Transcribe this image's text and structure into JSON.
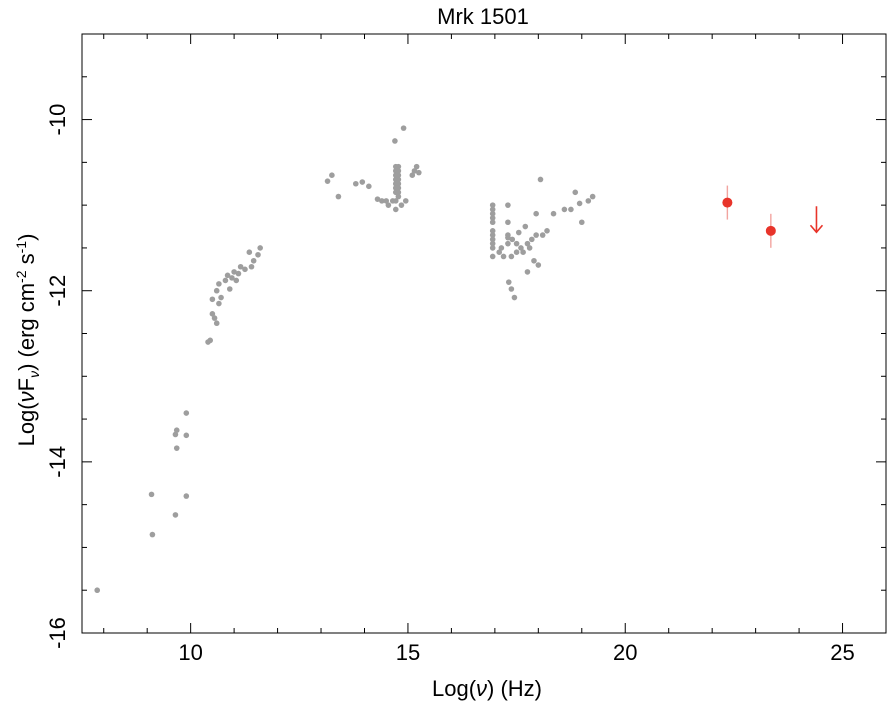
{
  "chart_data": {
    "type": "scatter",
    "title": "Mrk 1501",
    "xlabel_parts": [
      "Log(",
      "ν",
      ") (Hz)"
    ],
    "ylabel_parts": [
      "Log(",
      "ν",
      "F",
      "ν",
      ") (erg cm",
      "-2",
      " s",
      "-1",
      ")"
    ],
    "xlim": [
      7.5,
      26
    ],
    "ylim": [
      -16,
      -9
    ],
    "xticks": [
      10,
      15,
      20,
      25
    ],
    "yticks": [
      -16,
      -14,
      -12,
      -10
    ],
    "xtick_labels": [
      "10",
      "15",
      "20",
      "25"
    ],
    "ytick_labels": [
      "-16",
      "-14",
      "-12",
      "-10"
    ],
    "grid": false,
    "colors": {
      "archival": "#9e9e9e",
      "fermi": "#e8342a",
      "axes": "#000000"
    },
    "series": [
      {
        "role": "archival",
        "points": [
          [
            7.85,
            -15.5
          ],
          [
            9.1,
            -14.38
          ],
          [
            9.12,
            -14.85
          ],
          [
            9.65,
            -14.62
          ],
          [
            9.65,
            -13.68
          ],
          [
            9.68,
            -13.63
          ],
          [
            9.68,
            -13.84
          ],
          [
            9.9,
            -13.43
          ],
          [
            9.9,
            -13.69
          ],
          [
            9.9,
            -14.4
          ],
          [
            10.4,
            -12.6
          ],
          [
            10.45,
            -12.58
          ],
          [
            10.5,
            -12.27
          ],
          [
            10.5,
            -12.1
          ],
          [
            10.55,
            -12.32
          ],
          [
            10.6,
            -12.38
          ],
          [
            10.6,
            -12.0
          ],
          [
            10.65,
            -11.92
          ],
          [
            10.65,
            -12.15
          ],
          [
            10.7,
            -12.08
          ],
          [
            10.8,
            -11.88
          ],
          [
            10.85,
            -11.82
          ],
          [
            10.9,
            -11.98
          ],
          [
            10.95,
            -11.85
          ],
          [
            11.0,
            -11.78
          ],
          [
            11.05,
            -11.88
          ],
          [
            11.1,
            -11.8
          ],
          [
            11.15,
            -11.72
          ],
          [
            11.25,
            -11.75
          ],
          [
            11.35,
            -11.55
          ],
          [
            11.4,
            -11.72
          ],
          [
            11.45,
            -11.65
          ],
          [
            11.55,
            -11.58
          ],
          [
            11.6,
            -11.5
          ],
          [
            13.15,
            -10.72
          ],
          [
            13.25,
            -10.65
          ],
          [
            13.4,
            -10.9
          ],
          [
            13.8,
            -10.75
          ],
          [
            13.95,
            -10.73
          ],
          [
            14.1,
            -10.78
          ],
          [
            14.3,
            -10.93
          ],
          [
            14.4,
            -10.95
          ],
          [
            14.5,
            -10.95
          ],
          [
            14.55,
            -11.0
          ],
          [
            14.65,
            -10.95
          ],
          [
            14.7,
            -10.25
          ],
          [
            14.72,
            -10.55
          ],
          [
            14.72,
            -10.6
          ],
          [
            14.72,
            -10.65
          ],
          [
            14.72,
            -10.7
          ],
          [
            14.72,
            -10.75
          ],
          [
            14.72,
            -10.8
          ],
          [
            14.72,
            -10.85
          ],
          [
            14.72,
            -10.95
          ],
          [
            14.72,
            -11.05
          ],
          [
            14.78,
            -10.55
          ],
          [
            14.78,
            -10.6
          ],
          [
            14.78,
            -10.65
          ],
          [
            14.78,
            -10.7
          ],
          [
            14.78,
            -10.75
          ],
          [
            14.78,
            -10.8
          ],
          [
            14.78,
            -10.85
          ],
          [
            14.78,
            -10.9
          ],
          [
            14.85,
            -11.0
          ],
          [
            14.9,
            -10.1
          ],
          [
            14.95,
            -10.95
          ],
          [
            15.1,
            -10.65
          ],
          [
            15.15,
            -10.6
          ],
          [
            15.2,
            -10.55
          ],
          [
            15.25,
            -10.62
          ],
          [
            16.95,
            -11.0
          ],
          [
            16.95,
            -11.05
          ],
          [
            16.95,
            -11.1
          ],
          [
            16.95,
            -11.15
          ],
          [
            16.95,
            -11.2
          ],
          [
            16.95,
            -11.3
          ],
          [
            16.95,
            -11.35
          ],
          [
            16.95,
            -11.4
          ],
          [
            16.95,
            -11.45
          ],
          [
            16.95,
            -11.5
          ],
          [
            16.95,
            -11.6
          ],
          [
            17.1,
            -11.55
          ],
          [
            17.15,
            -11.5
          ],
          [
            17.2,
            -11.6
          ],
          [
            17.3,
            -11.0
          ],
          [
            17.3,
            -11.2
          ],
          [
            17.3,
            -11.35
          ],
          [
            17.3,
            -11.38
          ],
          [
            17.3,
            -11.45
          ],
          [
            17.32,
            -11.9
          ],
          [
            17.38,
            -11.6
          ],
          [
            17.38,
            -11.98
          ],
          [
            17.4,
            -11.4
          ],
          [
            17.45,
            -12.08
          ],
          [
            17.5,
            -11.45
          ],
          [
            17.5,
            -11.55
          ],
          [
            17.55,
            -11.32
          ],
          [
            17.6,
            -11.5
          ],
          [
            17.65,
            -11.55
          ],
          [
            17.7,
            -11.25
          ],
          [
            17.75,
            -11.45
          ],
          [
            17.75,
            -11.78
          ],
          [
            17.8,
            -11.5
          ],
          [
            17.85,
            -11.4
          ],
          [
            17.9,
            -11.65
          ],
          [
            17.95,
            -11.35
          ],
          [
            17.95,
            -11.1
          ],
          [
            18.0,
            -11.7
          ],
          [
            18.05,
            -10.7
          ],
          [
            18.1,
            -11.35
          ],
          [
            18.2,
            -11.3
          ],
          [
            18.35,
            -11.1
          ],
          [
            18.6,
            -11.05
          ],
          [
            18.75,
            -11.05
          ],
          [
            18.85,
            -10.85
          ],
          [
            18.95,
            -10.98
          ],
          [
            19.0,
            -11.2
          ],
          [
            19.15,
            -10.95
          ],
          [
            19.25,
            -10.9
          ]
        ]
      },
      {
        "role": "fermi",
        "points": [
          [
            22.35,
            -10.97
          ],
          [
            23.35,
            -11.3
          ]
        ]
      },
      {
        "role": "fermi-upper-limit",
        "points": [
          [
            24.4,
            -11.2
          ]
        ]
      }
    ]
  }
}
